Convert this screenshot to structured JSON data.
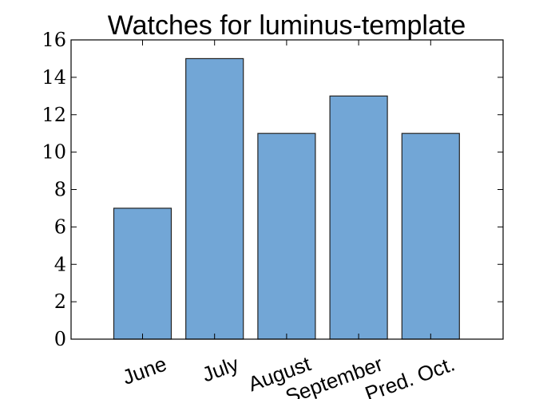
{
  "chart_data": {
    "type": "bar",
    "title": "Watches for luminus-template",
    "categories": [
      "June",
      "July",
      "August",
      "September",
      "Pred. Oct."
    ],
    "values": [
      7,
      15,
      11,
      13,
      11
    ],
    "ylim": [
      0,
      16
    ],
    "yticks": [
      0,
      2,
      4,
      6,
      8,
      10,
      12,
      14,
      16
    ],
    "xlabel": "",
    "ylabel": "",
    "grid": false,
    "bar_color": "#72a6d6",
    "bar_edge_color": "#222222"
  }
}
